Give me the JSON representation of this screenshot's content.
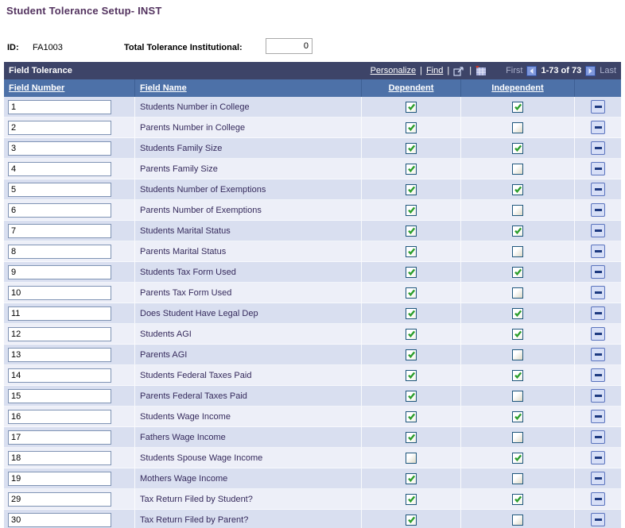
{
  "page": {
    "title": "Student Tolerance Setup- INST"
  },
  "header_fields": {
    "id_label": "ID:",
    "id_value": "FA1003",
    "total_label": "Total Tolerance Institutional:",
    "total_value": "0"
  },
  "grid": {
    "title": "Field Tolerance",
    "toolbar": {
      "personalize_label": "Personalize",
      "find_label": "Find",
      "separator": "|",
      "first_label": "First",
      "range_label": "1-73 of 73",
      "last_label": "Last",
      "icons": [
        "view-all-popup-icon",
        "download-grid-icon",
        "prev-row-set-icon",
        "next-row-set-icon"
      ]
    },
    "columns": {
      "field_number": "Field Number",
      "field_name": "Field Name",
      "dependent": "Dependent",
      "independent": "Independent"
    },
    "rows": [
      {
        "number": "1",
        "name": "Students Number in College",
        "dependent": true,
        "independent": true
      },
      {
        "number": "2",
        "name": "Parents Number in College",
        "dependent": true,
        "independent": false
      },
      {
        "number": "3",
        "name": "Students Family Size",
        "dependent": true,
        "independent": true
      },
      {
        "number": "4",
        "name": "Parents Family Size",
        "dependent": true,
        "independent": false
      },
      {
        "number": "5",
        "name": "Students Number of Exemptions",
        "dependent": true,
        "independent": true
      },
      {
        "number": "6",
        "name": "Parents Number of Exemptions",
        "dependent": true,
        "independent": false
      },
      {
        "number": "7",
        "name": "Students Marital Status",
        "dependent": true,
        "independent": true
      },
      {
        "number": "8",
        "name": "Parents Marital Status",
        "dependent": true,
        "independent": false
      },
      {
        "number": "9",
        "name": "Students Tax Form Used",
        "dependent": true,
        "independent": true
      },
      {
        "number": "10",
        "name": "Parents Tax Form Used",
        "dependent": true,
        "independent": false
      },
      {
        "number": "11",
        "name": "Does Student Have Legal Dep",
        "dependent": true,
        "independent": true
      },
      {
        "number": "12",
        "name": "Students AGI",
        "dependent": true,
        "independent": true
      },
      {
        "number": "13",
        "name": "Parents AGI",
        "dependent": true,
        "independent": false
      },
      {
        "number": "14",
        "name": "Students Federal Taxes Paid",
        "dependent": true,
        "independent": true
      },
      {
        "number": "15",
        "name": "Parents Federal Taxes Paid",
        "dependent": true,
        "independent": false
      },
      {
        "number": "16",
        "name": "Students Wage Income",
        "dependent": true,
        "independent": true
      },
      {
        "number": "17",
        "name": "Fathers Wage Income",
        "dependent": true,
        "independent": false
      },
      {
        "number": "18",
        "name": "Students Spouse Wage Income",
        "dependent": false,
        "independent": true
      },
      {
        "number": "19",
        "name": "Mothers Wage Income",
        "dependent": true,
        "independent": false
      },
      {
        "number": "29",
        "name": "Tax Return Filed by Student?",
        "dependent": true,
        "independent": true
      },
      {
        "number": "30",
        "name": "Tax Return Filed by Parent?",
        "dependent": true,
        "independent": false
      }
    ]
  },
  "colors": {
    "title_text": "#53335f",
    "grid_titlebar_bg": "#3d4468",
    "column_header_bg": "#4d71a8",
    "row_odd_bg": "#d9dff0",
    "row_even_bg": "#edeff8",
    "field_name_text": "#352a5c",
    "check_green": "#2d9e2d",
    "checkbox_border": "#1e567c",
    "minus_button_bg": "#d7dff7",
    "minus_button_border": "#5a73bd",
    "minus_glyph": "#1e3a80"
  }
}
